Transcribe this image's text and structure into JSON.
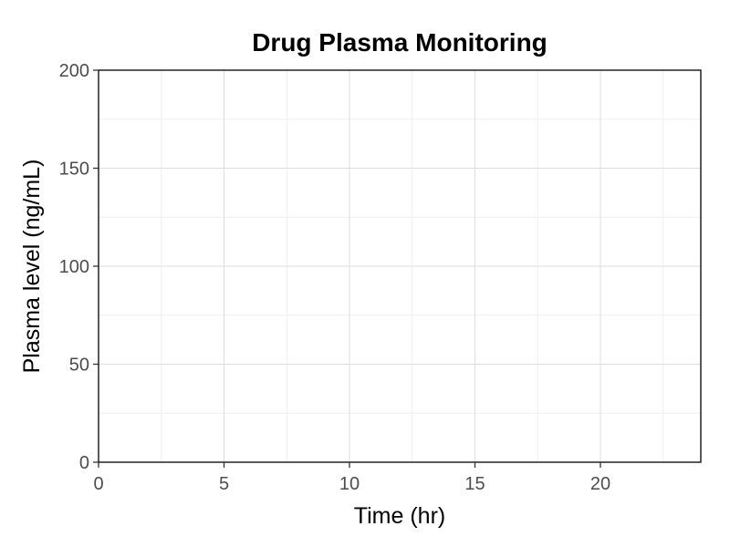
{
  "chart_data": {
    "type": "line",
    "title": "Drug Plasma Monitoring",
    "xlabel": "Time (hr)",
    "ylabel": "Plasma level (ng/mL)",
    "xlim": [
      0,
      24
    ],
    "ylim": [
      0,
      200
    ],
    "xticks": [
      0,
      5,
      10,
      15,
      20
    ],
    "yticks": [
      0,
      50,
      100,
      150,
      200
    ],
    "grid": true,
    "series": []
  }
}
